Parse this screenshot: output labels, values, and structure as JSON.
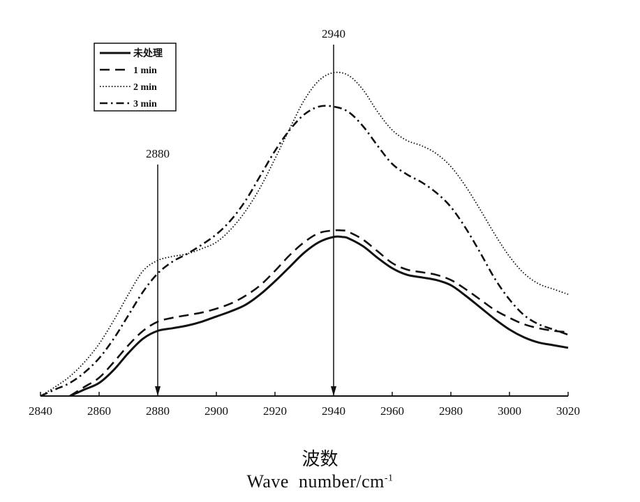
{
  "chart_data": {
    "type": "line",
    "xlim": [
      2840,
      3020
    ],
    "x_ticks": [
      2840,
      2860,
      2880,
      2900,
      2920,
      2940,
      2960,
      2980,
      3000,
      3020
    ],
    "xlabel_cn": "波数",
    "xlabel_en_base": "Wave  number/cm",
    "xlabel_en_sup": "-1",
    "y_axis_shown": false,
    "grid": false,
    "legend_position": "top-left",
    "annotations": [
      {
        "label": "2880",
        "x": 2880
      },
      {
        "label": "2940",
        "x": 2940
      }
    ],
    "series": [
      {
        "name": "未处理",
        "style": "solid",
        "x": [
          2850,
          2855,
          2860,
          2865,
          2870,
          2875,
          2880,
          2885,
          2890,
          2895,
          2900,
          2905,
          2910,
          2915,
          2920,
          2925,
          2930,
          2935,
          2940,
          2943,
          2945,
          2950,
          2955,
          2960,
          2965,
          2970,
          2975,
          2980,
          2985,
          2990,
          2995,
          3000,
          3005,
          3010,
          3015,
          3020
        ],
        "y": [
          0.0,
          0.05,
          0.1,
          0.2,
          0.33,
          0.44,
          0.5,
          0.52,
          0.54,
          0.57,
          0.61,
          0.65,
          0.7,
          0.78,
          0.88,
          0.99,
          1.1,
          1.18,
          1.22,
          1.22,
          1.21,
          1.15,
          1.06,
          0.98,
          0.93,
          0.91,
          0.89,
          0.85,
          0.77,
          0.68,
          0.59,
          0.51,
          0.45,
          0.41,
          0.39,
          0.37
        ]
      },
      {
        "name": "1 min",
        "style": "dashed",
        "x": [
          2850,
          2855,
          2860,
          2865,
          2870,
          2875,
          2880,
          2885,
          2890,
          2895,
          2900,
          2905,
          2910,
          2915,
          2920,
          2925,
          2930,
          2935,
          2940,
          2943,
          2945,
          2950,
          2955,
          2960,
          2965,
          2970,
          2975,
          2980,
          2985,
          2990,
          2995,
          3000,
          3005,
          3010,
          3015,
          3020
        ],
        "y": [
          0.0,
          0.07,
          0.14,
          0.26,
          0.39,
          0.5,
          0.57,
          0.6,
          0.62,
          0.64,
          0.67,
          0.71,
          0.77,
          0.85,
          0.96,
          1.08,
          1.18,
          1.25,
          1.27,
          1.27,
          1.26,
          1.2,
          1.11,
          1.02,
          0.97,
          0.95,
          0.93,
          0.89,
          0.82,
          0.74,
          0.66,
          0.6,
          0.55,
          0.52,
          0.5,
          0.49
        ]
      },
      {
        "name": "2 min",
        "style": "dotted",
        "x": [
          2840,
          2845,
          2850,
          2855,
          2860,
          2865,
          2870,
          2875,
          2880,
          2885,
          2890,
          2895,
          2900,
          2905,
          2910,
          2915,
          2920,
          2925,
          2930,
          2935,
          2940,
          2945,
          2950,
          2955,
          2960,
          2965,
          2970,
          2975,
          2980,
          2985,
          2990,
          2995,
          3000,
          3005,
          3010,
          3015,
          3020
        ],
        "y": [
          0.0,
          0.07,
          0.15,
          0.26,
          0.4,
          0.58,
          0.78,
          0.96,
          1.04,
          1.07,
          1.09,
          1.13,
          1.18,
          1.28,
          1.42,
          1.6,
          1.82,
          2.05,
          2.27,
          2.42,
          2.48,
          2.46,
          2.35,
          2.18,
          2.04,
          1.96,
          1.92,
          1.86,
          1.76,
          1.61,
          1.43,
          1.24,
          1.07,
          0.94,
          0.86,
          0.82,
          0.78
        ]
      },
      {
        "name": "3 min",
        "style": "dash-dot",
        "x": [
          2840,
          2845,
          2850,
          2855,
          2860,
          2865,
          2870,
          2875,
          2880,
          2885,
          2890,
          2895,
          2900,
          2905,
          2910,
          2915,
          2920,
          2925,
          2930,
          2935,
          2940,
          2945,
          2950,
          2955,
          2960,
          2965,
          2970,
          2975,
          2980,
          2985,
          2990,
          2995,
          3000,
          3005,
          3010,
          3015,
          3020
        ],
        "y": [
          0.0,
          0.05,
          0.1,
          0.18,
          0.29,
          0.44,
          0.62,
          0.8,
          0.94,
          1.03,
          1.09,
          1.16,
          1.24,
          1.35,
          1.5,
          1.69,
          1.88,
          2.04,
          2.16,
          2.22,
          2.22,
          2.18,
          2.07,
          1.92,
          1.78,
          1.7,
          1.64,
          1.56,
          1.45,
          1.29,
          1.1,
          0.9,
          0.74,
          0.62,
          0.55,
          0.51,
          0.47
        ]
      }
    ]
  },
  "colors": {
    "line": "#111111",
    "background": "#ffffff"
  }
}
